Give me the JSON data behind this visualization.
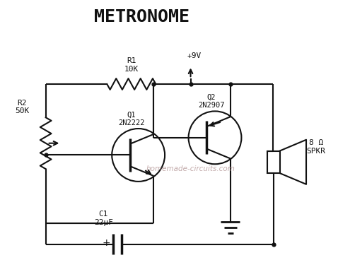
{
  "title": "METRONOME",
  "bg_color": "#ffffff",
  "line_color": "#111111",
  "text_color": "#111111",
  "watermark": "homemade-circuits.com",
  "watermark_color": "#b09090",
  "labels": {
    "R1": "R1\n10K",
    "R2": "R2\n50K",
    "Q1": "Q1\n2N2222",
    "Q2": "Q2\n2N2907",
    "C1": "C1\n22μF",
    "V": "+9V",
    "spkr": "8 Ω\nSPKR"
  },
  "figsize": [
    4.78,
    3.68
  ],
  "dpi": 100
}
